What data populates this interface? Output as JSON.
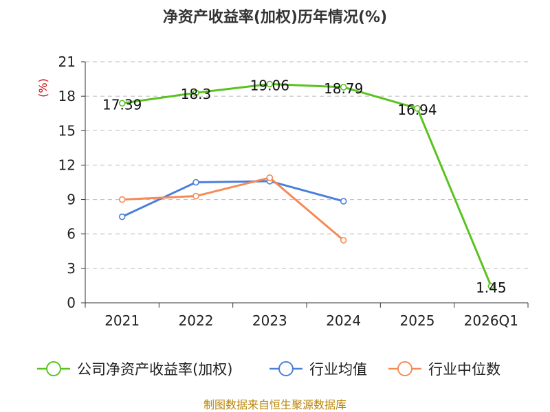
{
  "chart_data": {
    "type": "line",
    "title": "净资产收益率(加权)历年情况(%)",
    "ylabel": "(%)",
    "xlabel": "",
    "categories": [
      "2021",
      "2022",
      "2023",
      "2024",
      "2025",
      "2026Q1"
    ],
    "ylim": [
      0,
      21
    ],
    "yticks": [
      0,
      3,
      6,
      9,
      12,
      15,
      18,
      21
    ],
    "grid": true,
    "legend_position": "bottom",
    "series": [
      {
        "name": "公司净资产收益率(加权)",
        "color": "#5ac21e",
        "values": [
          17.39,
          18.3,
          19.06,
          18.79,
          16.94,
          1.45
        ],
        "labels": [
          "17.39",
          "18.3",
          "19.06",
          "18.79",
          "16.94",
          "1.45"
        ]
      },
      {
        "name": "行业均值",
        "color": "#4a7fdc",
        "values": [
          7.5,
          10.5,
          10.6,
          8.85,
          null,
          null
        ]
      },
      {
        "name": "行业中位数",
        "color": "#f58a55",
        "values": [
          9.0,
          9.3,
          10.9,
          5.45,
          null,
          null
        ]
      }
    ],
    "source": "制图数据来自恒生聚源数据库"
  }
}
